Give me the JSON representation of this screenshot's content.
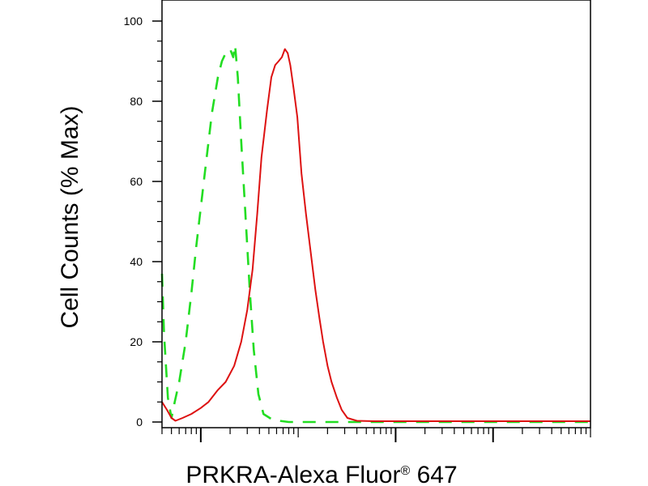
{
  "chart_data": {
    "type": "line",
    "ylabel": "Cell Counts (% Max)",
    "xlabel": "PRKRA-Alexa Fluor® 647",
    "x_scale": "log",
    "xlim": [
      0.4,
      10000
    ],
    "ylim": [
      0,
      100
    ],
    "yticks": [
      0,
      20,
      40,
      60,
      80,
      100
    ],
    "ytick_labels": [
      "0",
      "20",
      "40",
      "60",
      "80",
      "100"
    ],
    "xtick_major": [
      1,
      100,
      1000
    ],
    "grid": false,
    "colors": {
      "green": "#22dd22",
      "red": "#dd1111"
    },
    "series": [
      {
        "color": "#22dd22",
        "style": "dashed",
        "points": [
          [
            0.4,
            37
          ],
          [
            0.42,
            22
          ],
          [
            0.46,
            6
          ],
          [
            0.5,
            1
          ],
          [
            0.54,
            5
          ],
          [
            0.6,
            10
          ],
          [
            0.7,
            20
          ],
          [
            0.8,
            32
          ],
          [
            0.9,
            44
          ],
          [
            1.1,
            62
          ],
          [
            1.3,
            77
          ],
          [
            1.5,
            86
          ],
          [
            1.65,
            90
          ],
          [
            1.8,
            92
          ],
          [
            2.0,
            93
          ],
          [
            2.15,
            91
          ],
          [
            2.25,
            94
          ],
          [
            2.4,
            86
          ],
          [
            2.6,
            70
          ],
          [
            2.9,
            50
          ],
          [
            3.2,
            32
          ],
          [
            3.5,
            18
          ],
          [
            3.9,
            7
          ],
          [
            4.4,
            2
          ],
          [
            5.5,
            0.5
          ],
          [
            8,
            0
          ],
          [
            10000,
            0
          ]
        ]
      },
      {
        "color": "#dd1111",
        "style": "solid",
        "points": [
          [
            0.4,
            5
          ],
          [
            0.45,
            3
          ],
          [
            0.5,
            1
          ],
          [
            0.55,
            0.3
          ],
          [
            0.65,
            1
          ],
          [
            0.8,
            2
          ],
          [
            1.0,
            3.5
          ],
          [
            1.2,
            5
          ],
          [
            1.5,
            8
          ],
          [
            1.8,
            10
          ],
          [
            2.2,
            14
          ],
          [
            2.6,
            20
          ],
          [
            3.0,
            28
          ],
          [
            3.4,
            38
          ],
          [
            3.8,
            52
          ],
          [
            4.2,
            66
          ],
          [
            4.8,
            78
          ],
          [
            5.3,
            86
          ],
          [
            5.8,
            89
          ],
          [
            6.3,
            90
          ],
          [
            6.8,
            91
          ],
          [
            7.3,
            93
          ],
          [
            7.8,
            92
          ],
          [
            8.3,
            89
          ],
          [
            9.0,
            83
          ],
          [
            9.8,
            76
          ],
          [
            10.8,
            62
          ],
          [
            12,
            52
          ],
          [
            13.5,
            42
          ],
          [
            15,
            33
          ],
          [
            16.5,
            26
          ],
          [
            18,
            20
          ],
          [
            20,
            14
          ],
          [
            22,
            10
          ],
          [
            25,
            6
          ],
          [
            28,
            3
          ],
          [
            32,
            1
          ],
          [
            40,
            0.3
          ],
          [
            60,
            0.2
          ],
          [
            10000,
            0.2
          ]
        ]
      }
    ]
  }
}
